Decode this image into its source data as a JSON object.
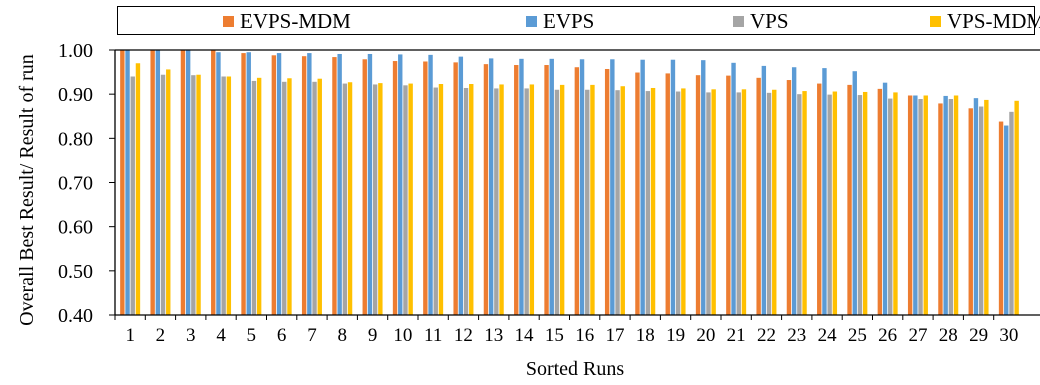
{
  "chart_data": {
    "type": "bar",
    "xlabel": "Sorted Runs",
    "ylabel": "Overall Best Result/ Result of run",
    "ylim": [
      0.4,
      1.0
    ],
    "yticks": [
      "0.40",
      "0.50",
      "0.60",
      "0.70",
      "0.80",
      "0.90",
      "1.00"
    ],
    "grid": false,
    "legend_position": "top",
    "categories": [
      "1",
      "2",
      "3",
      "4",
      "5",
      "6",
      "7",
      "8",
      "9",
      "10",
      "11",
      "12",
      "13",
      "14",
      "15",
      "16",
      "17",
      "18",
      "19",
      "20",
      "21",
      "22",
      "23",
      "24",
      "25",
      "26",
      "27",
      "28",
      "29",
      "30"
    ],
    "series": [
      {
        "name": "EVPS-MDM",
        "color": "#ED7D31",
        "values": [
          1.0,
          1.0,
          1.0,
          1.0,
          0.993,
          0.988,
          0.986,
          0.984,
          0.979,
          0.975,
          0.974,
          0.972,
          0.968,
          0.966,
          0.966,
          0.961,
          0.957,
          0.949,
          0.947,
          0.943,
          0.942,
          0.937,
          0.932,
          0.924,
          0.921,
          0.912,
          0.897,
          0.879,
          0.868,
          0.838
        ]
      },
      {
        "name": "EVPS",
        "color": "#5B9BD5",
        "values": [
          1.0,
          1.0,
          1.0,
          0.995,
          0.995,
          0.993,
          0.993,
          0.991,
          0.991,
          0.99,
          0.989,
          0.985,
          0.981,
          0.98,
          0.98,
          0.979,
          0.979,
          0.978,
          0.978,
          0.977,
          0.971,
          0.964,
          0.961,
          0.959,
          0.952,
          0.926,
          0.897,
          0.896,
          0.891,
          0.829
        ]
      },
      {
        "name": "VPS",
        "color": "#A5A5A5",
        "values": [
          0.94,
          0.944,
          0.943,
          0.94,
          0.93,
          0.928,
          0.928,
          0.924,
          0.922,
          0.92,
          0.915,
          0.914,
          0.913,
          0.913,
          0.91,
          0.91,
          0.909,
          0.907,
          0.906,
          0.904,
          0.904,
          0.903,
          0.9,
          0.899,
          0.898,
          0.89,
          0.889,
          0.889,
          0.872,
          0.86
        ]
      },
      {
        "name": "VPS-MDM",
        "color": "#FFC000",
        "values": [
          0.97,
          0.956,
          0.944,
          0.94,
          0.937,
          0.936,
          0.935,
          0.927,
          0.925,
          0.924,
          0.923,
          0.923,
          0.922,
          0.922,
          0.921,
          0.921,
          0.918,
          0.914,
          0.913,
          0.911,
          0.911,
          0.91,
          0.907,
          0.906,
          0.905,
          0.904,
          0.897,
          0.897,
          0.887,
          0.885
        ]
      }
    ]
  }
}
